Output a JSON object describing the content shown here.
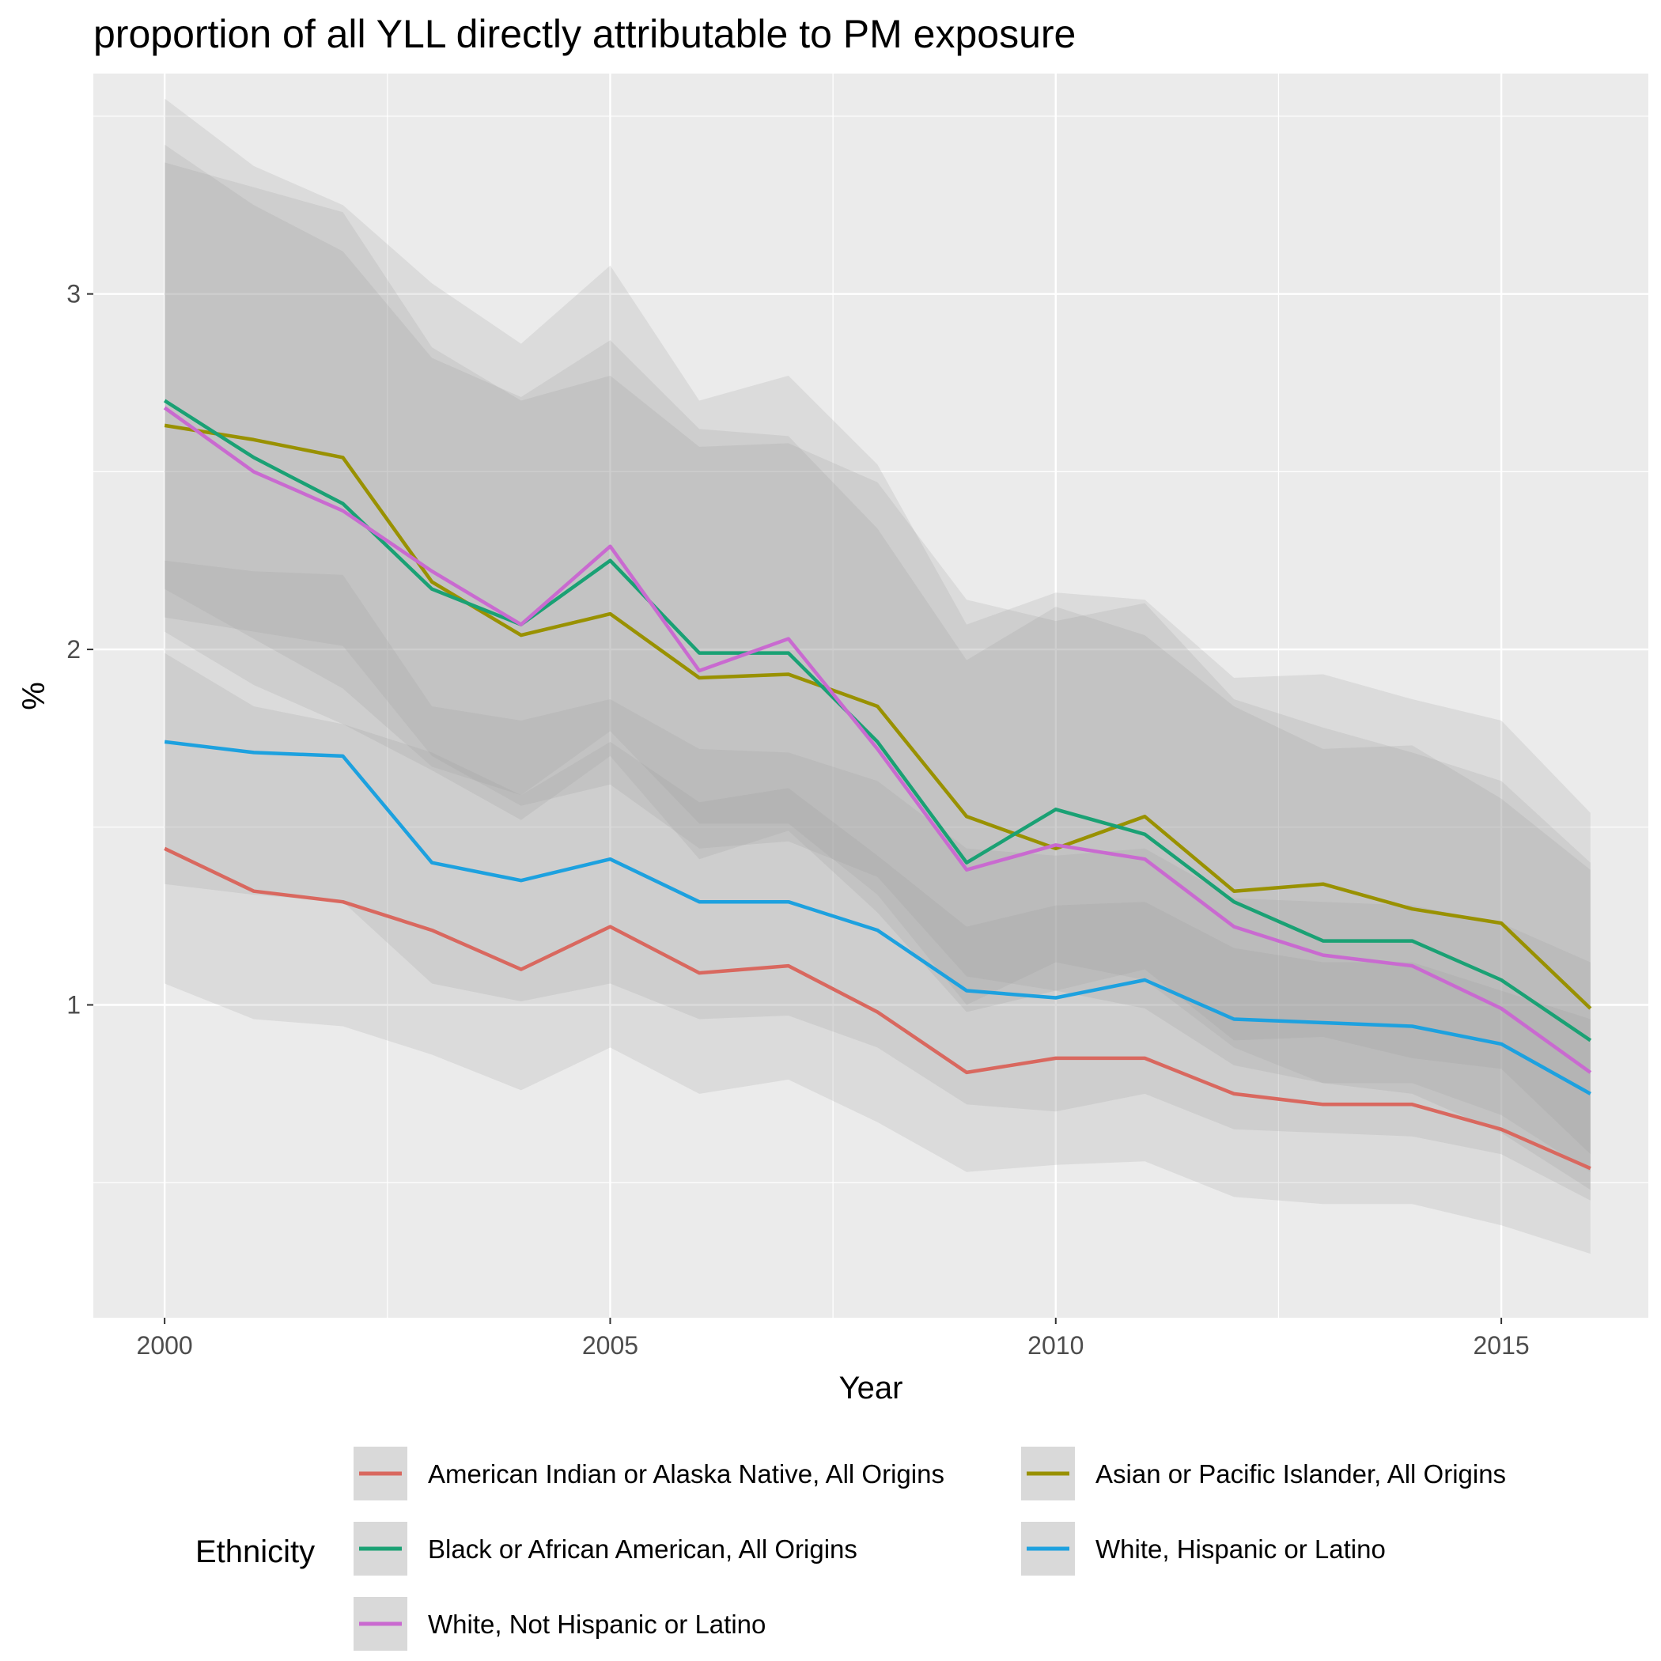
{
  "chart_data": {
    "type": "line",
    "title": "proportion of all YLL directly attributable to PM exposure",
    "xlabel": "Year",
    "ylabel": "%",
    "xlim": [
      1999.2,
      2016.65
    ],
    "ylim": [
      0.12,
      3.62
    ],
    "x_ticks": [
      2000,
      2005,
      2010,
      2015
    ],
    "y_ticks": [
      1,
      2,
      3
    ],
    "grid": true,
    "legend_position": "bottom",
    "legend_title": "Ethnicity",
    "x": [
      2000,
      2001,
      2002,
      2003,
      2004,
      2005,
      2006,
      2007,
      2008,
      2009,
      2010,
      2011,
      2012,
      2013,
      2014,
      2015,
      2016
    ],
    "series": [
      {
        "name": "American Indian or Alaska Native, All Origins",
        "color": "#d9685f",
        "values": [
          1.44,
          1.32,
          1.29,
          1.21,
          1.1,
          1.22,
          1.09,
          1.11,
          0.98,
          0.81,
          0.85,
          0.85,
          0.75,
          0.72,
          0.72,
          0.65,
          0.54
        ],
        "lower": [
          1.06,
          0.96,
          0.94,
          0.86,
          0.76,
          0.88,
          0.75,
          0.79,
          0.67,
          0.53,
          0.55,
          0.56,
          0.46,
          0.44,
          0.44,
          0.38,
          0.3
        ],
        "upper": [
          1.99,
          1.84,
          1.79,
          1.71,
          1.59,
          1.74,
          1.57,
          1.61,
          1.42,
          1.22,
          1.28,
          1.29,
          1.16,
          1.12,
          1.12,
          1.04,
          0.96
        ]
      },
      {
        "name": "Asian or Pacific Islander, All Origins",
        "color": "#999100",
        "values": [
          2.63,
          2.59,
          2.54,
          2.19,
          2.04,
          2.1,
          1.92,
          1.93,
          1.84,
          1.53,
          1.44,
          1.53,
          1.32,
          1.34,
          1.27,
          1.23,
          0.99
        ],
        "lower": [
          2.09,
          2.05,
          2.01,
          1.7,
          1.56,
          1.62,
          1.44,
          1.46,
          1.36,
          1.08,
          1.04,
          1.1,
          0.9,
          0.91,
          0.85,
          0.82,
          0.58
        ],
        "upper": [
          3.37,
          3.3,
          3.23,
          2.85,
          2.7,
          2.77,
          2.57,
          2.58,
          2.47,
          2.14,
          2.08,
          2.13,
          1.86,
          1.78,
          1.71,
          1.63,
          1.4
        ]
      },
      {
        "name": "Black or African American, All Origins",
        "color": "#1aa174",
        "values": [
          2.7,
          2.54,
          2.41,
          2.17,
          2.07,
          2.25,
          1.99,
          1.99,
          1.74,
          1.4,
          1.55,
          1.48,
          1.29,
          1.18,
          1.18,
          1.07,
          0.9
        ],
        "lower": [
          2.17,
          2.03,
          1.89,
          1.67,
          1.59,
          1.77,
          1.51,
          1.51,
          1.31,
          1.0,
          1.12,
          1.07,
          0.88,
          0.78,
          0.78,
          0.69,
          0.53
        ],
        "upper": [
          3.42,
          3.25,
          3.12,
          2.82,
          2.71,
          2.87,
          2.62,
          2.6,
          2.34,
          1.97,
          2.12,
          2.04,
          1.84,
          1.72,
          1.73,
          1.58,
          1.38
        ]
      },
      {
        "name": "White, Hispanic or Latino",
        "color": "#1da1df",
        "values": [
          1.74,
          1.71,
          1.7,
          1.4,
          1.35,
          1.41,
          1.29,
          1.29,
          1.21,
          1.04,
          1.02,
          1.07,
          0.96,
          0.95,
          0.94,
          0.89,
          0.75
        ],
        "lower": [
          1.34,
          1.31,
          1.29,
          1.06,
          1.01,
          1.06,
          0.96,
          0.97,
          0.88,
          0.72,
          0.7,
          0.75,
          0.65,
          0.64,
          0.63,
          0.58,
          0.45
        ],
        "upper": [
          2.25,
          2.22,
          2.21,
          1.84,
          1.8,
          1.86,
          1.72,
          1.71,
          1.63,
          1.44,
          1.42,
          1.44,
          1.3,
          1.29,
          1.28,
          1.23,
          1.12
        ]
      },
      {
        "name": "White, Not Hispanic or Latino",
        "color": "#c96ad0",
        "values": [
          2.68,
          2.5,
          2.39,
          2.22,
          2.07,
          2.29,
          1.94,
          2.03,
          1.72,
          1.38,
          1.45,
          1.41,
          1.22,
          1.14,
          1.11,
          0.99,
          0.81
        ],
        "lower": [
          2.05,
          1.9,
          1.79,
          1.66,
          1.52,
          1.7,
          1.41,
          1.49,
          1.26,
          0.98,
          1.04,
          0.99,
          0.83,
          0.78,
          0.75,
          0.64,
          0.48
        ],
        "upper": [
          3.55,
          3.36,
          3.25,
          3.03,
          2.86,
          3.08,
          2.7,
          2.77,
          2.52,
          2.07,
          2.16,
          2.14,
          1.92,
          1.93,
          1.86,
          1.8,
          1.54
        ]
      }
    ],
    "legend_order": [
      0,
      1,
      2,
      3,
      4
    ]
  }
}
